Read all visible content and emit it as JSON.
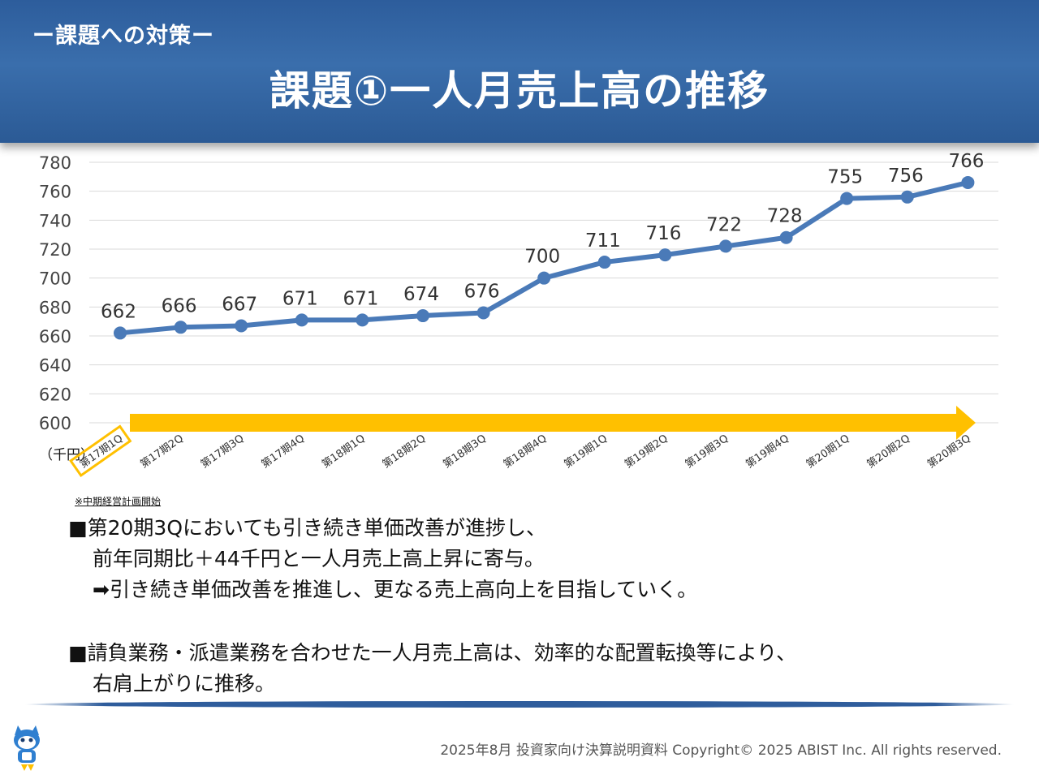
{
  "header": {
    "subtitle": "ー課題への対策ー",
    "title": "課題①一人月売上高の推移"
  },
  "chart_data": {
    "type": "line",
    "categories": [
      "第17期1Q",
      "第17期2Q",
      "第17期3Q",
      "第17期4Q",
      "第18期1Q",
      "第18期2Q",
      "第18期3Q",
      "第18期4Q",
      "第19期1Q",
      "第19期2Q",
      "第19期3Q",
      "第19期4Q",
      "第20期1Q",
      "第20期2Q",
      "第20期3Q"
    ],
    "values": [
      662,
      666,
      667,
      671,
      671,
      674,
      676,
      700,
      711,
      716,
      722,
      728,
      755,
      756,
      766
    ],
    "ylim": [
      600,
      780
    ],
    "yticks": [
      600,
      620,
      640,
      660,
      680,
      700,
      720,
      740,
      760,
      780
    ],
    "ylabel": "（千円）",
    "grid": true,
    "line_color": "#4a7ab8",
    "arrow_color": "#ffc000",
    "highlight_color": "#ffc000",
    "highlight_category": "第17期1Q"
  },
  "note": "※中期経営計画開始",
  "bullets": [
    {
      "lines": [
        "■第20期3Qにおいても引き続き単価改善が進捗し、",
        "前年同期比＋44千円と一人月売上高上昇に寄与。",
        "➡引き続き単価改善を推進し、更なる売上高向上を目指していく。"
      ]
    },
    {
      "lines": [
        "■請負業務・派遣業務を合わせた一人月売上高は、効率的な配置転換等により、",
        "右肩上がりに推移。"
      ]
    }
  ],
  "footer": "2025年8月 投資家向け決算説明資料 Copyright© 2025 ABIST Inc. All rights reserved.",
  "logo_icon": "cat-mascot-icon"
}
